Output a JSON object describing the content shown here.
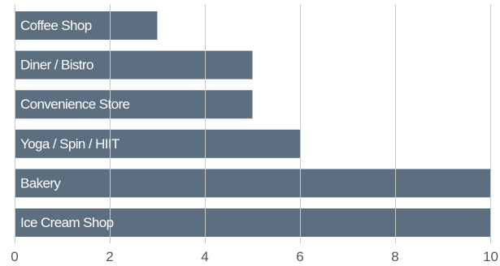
{
  "chart_data": {
    "type": "bar",
    "orientation": "horizontal",
    "categories": [
      "Coffee Shop",
      "Diner / Bistro",
      "Convenience Store",
      "Yoga / Spin / HIIT",
      "Bakery",
      "Ice Cream Shop"
    ],
    "values": [
      3,
      5,
      5,
      6,
      10,
      10
    ],
    "xlim": [
      0,
      10
    ],
    "xticks": [
      "0",
      "2",
      "4",
      "6",
      "8",
      "10"
    ],
    "title": "",
    "xlabel": "",
    "ylabel": "",
    "grid": true,
    "labels_inside_bars": true,
    "bar_color": "#5c6e80",
    "grid_color": "#c9c9c9",
    "tick_color": "#555555",
    "label_color": "#ffffff"
  }
}
